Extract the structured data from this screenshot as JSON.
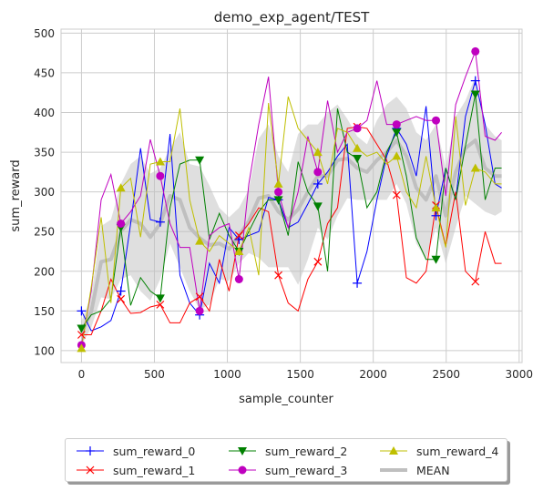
{
  "chart_data": {
    "type": "line",
    "title": "demo_exp_agent/TEST",
    "xlabel": "sample_counter",
    "ylabel": "sum_reward",
    "xlim": [
      -140,
      3020
    ],
    "ylim": [
      85,
      505
    ],
    "xticks": [
      0,
      500,
      1000,
      1500,
      2000,
      2500,
      3000
    ],
    "yticks": [
      100,
      150,
      200,
      250,
      300,
      350,
      400,
      450,
      500
    ],
    "grid": true,
    "legend_position": "below",
    "x": [
      0,
      67,
      135,
      202,
      270,
      337,
      405,
      472,
      540,
      607,
      675,
      742,
      810,
      877,
      945,
      1012,
      1080,
      1147,
      1215,
      1282,
      1350,
      1417,
      1485,
      1552,
      1620,
      1687,
      1755,
      1822,
      1890,
      1957,
      2025,
      2092,
      2160,
      2227,
      2295,
      2362,
      2430,
      2497,
      2565,
      2632,
      2700,
      2767,
      2835,
      2880
    ],
    "series": [
      {
        "name": "sum_reward_0",
        "color": "#0000ff",
        "marker": "plus",
        "values": [
          150,
          125,
          130,
          138,
          175,
          260,
          355,
          265,
          262,
          373,
          195,
          160,
          145,
          210,
          185,
          255,
          240,
          245,
          250,
          293,
          290,
          255,
          262,
          285,
          310,
          325,
          345,
          360,
          185,
          225,
          290,
          345,
          380,
          360,
          320,
          408,
          270,
          330,
          290,
          395,
          440,
          385,
          310,
          305
        ]
      },
      {
        "name": "sum_reward_1",
        "color": "#ff0000",
        "marker": "x",
        "values": [
          120,
          120,
          150,
          190,
          165,
          147,
          148,
          155,
          158,
          135,
          135,
          160,
          168,
          150,
          215,
          175,
          245,
          260,
          280,
          275,
          195,
          160,
          150,
          190,
          212,
          260,
          280,
          380,
          382,
          380,
          360,
          340,
          296,
          192,
          185,
          200,
          283,
          232,
          300,
          200,
          187,
          250,
          210,
          210
        ]
      },
      {
        "name": "sum_reward_2",
        "color": "#008000",
        "marker": "triangle-down",
        "values": [
          128,
          145,
          150,
          165,
          255,
          157,
          192,
          175,
          166,
          280,
          335,
          340,
          340,
          240,
          273,
          245,
          225,
          250,
          275,
          290,
          290,
          245,
          338,
          300,
          282,
          200,
          405,
          350,
          342,
          280,
          300,
          350,
          375,
          320,
          242,
          215,
          215,
          330,
          290,
          358,
          423,
          290,
          330,
          330
        ]
      },
      {
        "name": "sum_reward_3",
        "color": "#bf00bf",
        "marker": "circle",
        "values": [
          107,
          175,
          290,
          322,
          260,
          275,
          295,
          366,
          320,
          260,
          230,
          230,
          150,
          245,
          255,
          260,
          190,
          310,
          385,
          445,
          300,
          255,
          300,
          370,
          325,
          415,
          350,
          375,
          380,
          390,
          440,
          385,
          385,
          390,
          395,
          390,
          390,
          295,
          410,
          445,
          477,
          370,
          365,
          375
        ]
      },
      {
        "name": "sum_reward_4",
        "color": "#bfbf00",
        "marker": "triangle-up",
        "values": [
          103,
          180,
          268,
          160,
          305,
          317,
          243,
          335,
          338,
          338,
          405,
          290,
          238,
          225,
          245,
          235,
          225,
          255,
          195,
          412,
          310,
          420,
          380,
          365,
          350,
          310,
          380,
          375,
          355,
          345,
          350,
          335,
          345,
          300,
          280,
          345,
          280,
          230,
          395,
          283,
          330,
          325,
          310,
          310
        ]
      }
    ],
    "mean": {
      "name": "MEAN",
      "color": "#bfbfbf",
      "values": [
        122,
        149,
        212,
        215,
        250,
        265,
        260,
        243,
        260,
        295,
        290,
        255,
        242,
        233,
        235,
        228,
        245,
        263,
        292,
        295,
        275,
        265,
        278,
        300,
        320,
        320,
        340,
        342,
        330,
        325,
        340,
        350,
        365,
        345,
        305,
        290,
        320,
        270,
        325,
        355,
        365,
        330,
        320,
        320
      ]
    },
    "band_halfwidth": [
      15,
      20,
      45,
      50,
      60,
      70,
      85,
      80,
      70,
      60,
      85,
      80,
      90,
      75,
      45,
      40,
      35,
      40,
      75,
      90,
      70,
      60,
      95,
      85,
      65,
      80,
      70,
      50,
      40,
      35,
      50,
      60,
      55,
      60,
      70,
      75,
      65,
      60,
      70,
      60,
      80,
      55,
      50,
      45
    ]
  },
  "legend": {
    "items": [
      {
        "label": "sum_reward_0",
        "color": "#0000ff",
        "marker": "plus"
      },
      {
        "label": "sum_reward_1",
        "color": "#ff0000",
        "marker": "x"
      },
      {
        "label": "sum_reward_2",
        "color": "#008000",
        "marker": "triangle-down"
      },
      {
        "label": "sum_reward_3",
        "color": "#bf00bf",
        "marker": "circle"
      },
      {
        "label": "sum_reward_4",
        "color": "#bfbf00",
        "marker": "triangle-up"
      },
      {
        "label": "MEAN",
        "color": "#bfbfbf",
        "marker": "none"
      }
    ]
  }
}
